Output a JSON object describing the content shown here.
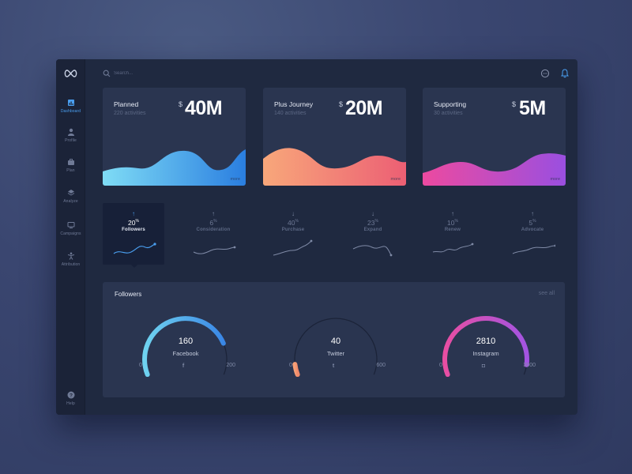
{
  "colors": {
    "accent": "#4a9ff0",
    "background": "#1f2940",
    "card": "#2a3550"
  },
  "sidebar": {
    "logo": "infinity-logo-icon",
    "items": [
      {
        "label": "Dashboard",
        "icon": "dashboard-icon",
        "active": true
      },
      {
        "label": "Profile",
        "icon": "user-icon",
        "active": false
      },
      {
        "label": "Plan",
        "icon": "briefcase-icon",
        "active": false
      },
      {
        "label": "Analyze",
        "icon": "layers-icon",
        "active": false
      },
      {
        "label": "Campaigns",
        "icon": "monitor-icon",
        "active": false
      },
      {
        "label": "Attribution",
        "icon": "person-arms-icon",
        "active": false
      }
    ],
    "help": {
      "label": "Help",
      "icon": "help-icon"
    }
  },
  "header": {
    "search_placeholder": "Search..."
  },
  "cards": [
    {
      "title": "Planned",
      "subtitle": "220 activities",
      "currency": "$",
      "amount": "40M",
      "more": "more",
      "gradient": [
        "#7fdcf5",
        "#2a7ee0"
      ]
    },
    {
      "title": "Plus Journey",
      "subtitle": "140 activities",
      "currency": "$",
      "amount": "20M",
      "more": "more",
      "gradient": [
        "#f8a77a",
        "#ec5f74"
      ]
    },
    {
      "title": "Supporting",
      "subtitle": "30 activities",
      "currency": "$",
      "amount": "5M",
      "more": "more",
      "gradient": [
        "#ec4aa0",
        "#9a4fe0"
      ]
    }
  ],
  "metrics": [
    {
      "arrow": "↑",
      "value": "20",
      "unit": "%",
      "label": "Followers",
      "active": true
    },
    {
      "arrow": "↑",
      "value": "6",
      "unit": "%",
      "label": "Consideration",
      "active": false
    },
    {
      "arrow": "↓",
      "value": "40",
      "unit": "%",
      "label": "Purchase",
      "active": false
    },
    {
      "arrow": "↓",
      "value": "23",
      "unit": "%",
      "label": "Expand",
      "active": false
    },
    {
      "arrow": "↑",
      "value": "10",
      "unit": "%",
      "label": "Renew",
      "active": false
    },
    {
      "arrow": "↑",
      "value": "5",
      "unit": "%",
      "label": "Advocate",
      "active": false
    }
  ],
  "followers": {
    "title": "Followers",
    "see_all": "see all",
    "gauges": [
      {
        "name": "Facebook",
        "value": 160,
        "min": "0",
        "max": "200",
        "display": "160",
        "icon": "facebook-icon",
        "glyph": "f",
        "colors": [
          "#6fd3f0",
          "#3a87e6"
        ]
      },
      {
        "name": "Twitter",
        "value": 40,
        "min": "0",
        "max": "600",
        "display": "40",
        "icon": "twitter-icon",
        "glyph": "t",
        "colors": [
          "#f7a077",
          "#f08a6a"
        ]
      },
      {
        "name": "Instagram",
        "value": 2810,
        "min": "0",
        "max": "3000",
        "display": "2810",
        "icon": "instagram-icon",
        "glyph": "◘",
        "colors": [
          "#e84ea2",
          "#a354e2"
        ]
      }
    ]
  }
}
